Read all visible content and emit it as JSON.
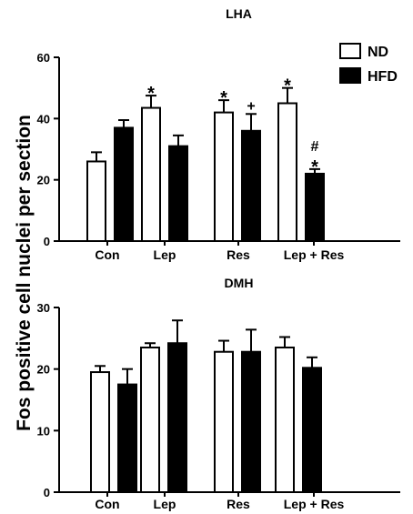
{
  "figure": {
    "ylabel": "Fos positive cell nuclei per section",
    "legend": [
      {
        "label": "ND",
        "fill": "#ffffff"
      },
      {
        "label": "HFD",
        "fill": "#000000"
      }
    ],
    "colors": {
      "ND": "#ffffff",
      "HFD": "#000000",
      "stroke": "#000000"
    }
  },
  "chart_data": [
    {
      "type": "bar",
      "title": "LHA",
      "ylabel": "Fos positive cell nuclei per section",
      "categories": [
        "Con",
        "Lep",
        "Res",
        "Lep + Res"
      ],
      "series": [
        {
          "name": "ND",
          "values": [
            26,
            43.5,
            42,
            45
          ],
          "errors": [
            3,
            4,
            4,
            5
          ],
          "annotations": [
            "",
            "*",
            "*",
            "*"
          ]
        },
        {
          "name": "HFD",
          "values": [
            37,
            31,
            36,
            22
          ],
          "errors": [
            2.5,
            3.5,
            5.5,
            1.5
          ],
          "annotations": [
            "",
            "",
            "+",
            "*\n#"
          ]
        }
      ],
      "ylim": [
        0,
        60
      ],
      "yticks": [
        0,
        20,
        40,
        60
      ],
      "legend": "top-right",
      "grid": false
    },
    {
      "type": "bar",
      "title": "DMH",
      "ylabel": "Fos positive cell nuclei per section",
      "categories": [
        "Con",
        "Lep",
        "Res",
        "Lep + Res"
      ],
      "series": [
        {
          "name": "ND",
          "values": [
            19.5,
            23.5,
            22.8,
            23.5
          ],
          "errors": [
            1,
            0.7,
            1.8,
            1.7
          ],
          "annotations": [
            "",
            "",
            "",
            ""
          ]
        },
        {
          "name": "HFD",
          "values": [
            17.5,
            24.2,
            22.8,
            20.2
          ],
          "errors": [
            2.5,
            3.7,
            3.6,
            1.7
          ],
          "annotations": [
            "",
            "",
            "",
            ""
          ]
        }
      ],
      "ylim": [
        0,
        30
      ],
      "yticks": [
        0,
        10,
        20,
        30
      ],
      "legend": "none",
      "grid": false
    }
  ]
}
